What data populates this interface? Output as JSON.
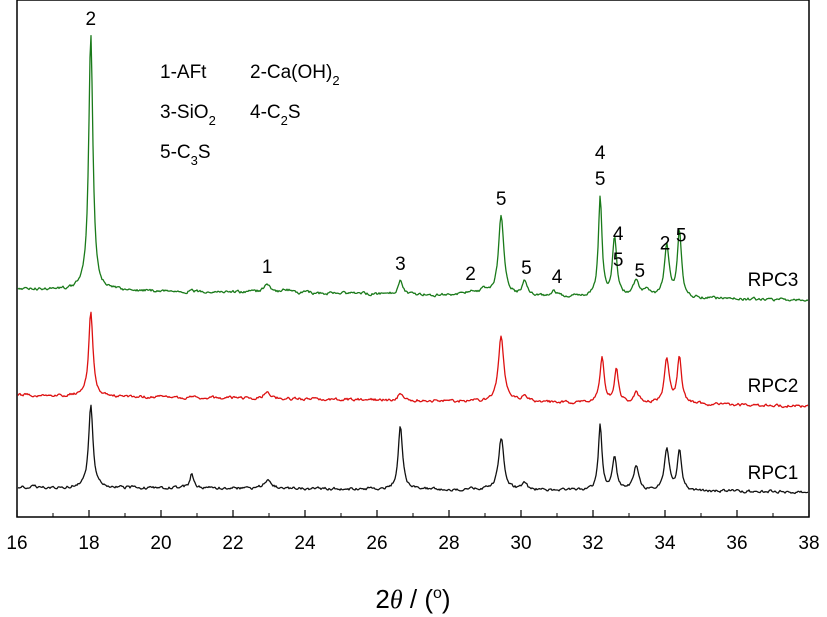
{
  "chart_data": {
    "type": "line",
    "title": "",
    "xlabel": {
      "prefix": "2",
      "symbol": "θ",
      "suffix_a": " / (",
      "degree": "o",
      "suffix_b": ")"
    },
    "ylabel": "",
    "xlim": [
      16,
      38
    ],
    "xticks": [
      "16",
      "18",
      "20",
      "22",
      "24",
      "26",
      "28",
      "30",
      "32",
      "34",
      "36",
      "38"
    ],
    "grid": false,
    "legend_box": {
      "rows": [
        [
          {
            "main": "1-AFt",
            "sub": ""
          },
          {
            "main": "2-Ca(OH)",
            "sub": "2"
          }
        ],
        [
          {
            "main": "3-SiO",
            "sub": "2"
          },
          {
            "main": "4-C",
            "sub": "2",
            "tail": "S"
          }
        ],
        [
          {
            "main": "5-C",
            "sub": "3",
            "tail": "S"
          }
        ]
      ]
    },
    "series": [
      {
        "name": "RPC3",
        "color": "#1a7a1a",
        "peaks": [
          {
            "x": 18.05,
            "h": 255,
            "w": 0.07
          },
          {
            "x": 22.95,
            "h": 9,
            "w": 0.1
          },
          {
            "x": 23.5,
            "h": 3,
            "w": 0.15
          },
          {
            "x": 26.65,
            "h": 14,
            "w": 0.08
          },
          {
            "x": 28.6,
            "h": 4,
            "w": 0.1
          },
          {
            "x": 28.95,
            "h": 5,
            "w": 0.1
          },
          {
            "x": 29.45,
            "h": 80,
            "w": 0.09
          },
          {
            "x": 30.1,
            "h": 16,
            "w": 0.07
          },
          {
            "x": 30.9,
            "h": 5,
            "w": 0.1
          },
          {
            "x": 32.2,
            "h": 100,
            "w": 0.06
          },
          {
            "x": 32.6,
            "h": 58,
            "w": 0.07
          },
          {
            "x": 33.2,
            "h": 15,
            "w": 0.1
          },
          {
            "x": 33.5,
            "h": 8,
            "w": 0.1
          },
          {
            "x": 34.05,
            "h": 50,
            "w": 0.08
          },
          {
            "x": 34.4,
            "h": 67,
            "w": 0.07
          }
        ]
      },
      {
        "name": "RPC2",
        "color": "#dd1111",
        "peaks": [
          {
            "x": 18.05,
            "h": 85,
            "w": 0.07
          },
          {
            "x": 22.95,
            "h": 7,
            "w": 0.1
          },
          {
            "x": 26.65,
            "h": 7,
            "w": 0.08
          },
          {
            "x": 29.45,
            "h": 66,
            "w": 0.09
          },
          {
            "x": 30.1,
            "h": 8,
            "w": 0.08
          },
          {
            "x": 32.25,
            "h": 46,
            "w": 0.07
          },
          {
            "x": 32.65,
            "h": 33,
            "w": 0.07
          },
          {
            "x": 33.2,
            "h": 10,
            "w": 0.1
          },
          {
            "x": 34.05,
            "h": 44,
            "w": 0.08
          },
          {
            "x": 34.4,
            "h": 47,
            "w": 0.07
          }
        ]
      },
      {
        "name": "RPC1",
        "color": "#111111",
        "peaks": [
          {
            "x": 18.05,
            "h": 82,
            "w": 0.07
          },
          {
            "x": 20.85,
            "h": 14,
            "w": 0.06
          },
          {
            "x": 22.95,
            "h": 8,
            "w": 0.12
          },
          {
            "x": 26.65,
            "h": 65,
            "w": 0.07
          },
          {
            "x": 29.45,
            "h": 52,
            "w": 0.09
          },
          {
            "x": 30.1,
            "h": 6,
            "w": 0.08
          },
          {
            "x": 32.2,
            "h": 64,
            "w": 0.06
          },
          {
            "x": 32.6,
            "h": 34,
            "w": 0.07
          },
          {
            "x": 33.2,
            "h": 24,
            "w": 0.09
          },
          {
            "x": 34.05,
            "h": 40,
            "w": 0.08
          },
          {
            "x": 34.4,
            "h": 40,
            "w": 0.07
          }
        ]
      }
    ],
    "peak_annotations": [
      {
        "x": 18.05,
        "text": "2",
        "series": "RPC3"
      },
      {
        "x": 22.95,
        "text": "1",
        "series": "RPC3"
      },
      {
        "x": 26.65,
        "text": "3",
        "series": "RPC3"
      },
      {
        "x": 28.6,
        "text": "2",
        "series": "RPC3"
      },
      {
        "x": 29.45,
        "text": "5",
        "series": "RPC3"
      },
      {
        "x": 30.15,
        "text": "5",
        "series": "RPC3"
      },
      {
        "x": 31.0,
        "text": "4",
        "series": "RPC3"
      },
      {
        "x": 32.2,
        "text": "4",
        "series": "RPC3",
        "stack": 2
      },
      {
        "x": 32.2,
        "text": "5",
        "series": "RPC3",
        "stack": 1
      },
      {
        "x": 32.7,
        "text": "4",
        "series": "RPC3",
        "stack": 2
      },
      {
        "x": 32.7,
        "text": "5",
        "series": "RPC3",
        "stack": 1
      },
      {
        "x": 33.3,
        "text": "5",
        "series": "RPC3"
      },
      {
        "x": 34.0,
        "text": "2",
        "series": "RPC3"
      },
      {
        "x": 34.45,
        "text": "5",
        "series": "RPC3"
      }
    ]
  }
}
